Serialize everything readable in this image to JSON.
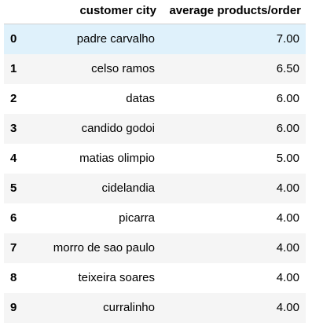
{
  "table": {
    "columns": [
      "customer city",
      "average products/order"
    ],
    "rows": [
      {
        "index": "0",
        "city": "padre carvalho",
        "avg": "7.00"
      },
      {
        "index": "1",
        "city": "celso ramos",
        "avg": "6.50"
      },
      {
        "index": "2",
        "city": "datas",
        "avg": "6.00"
      },
      {
        "index": "3",
        "city": "candido godoi",
        "avg": "6.00"
      },
      {
        "index": "4",
        "city": "matias olimpio",
        "avg": "5.00"
      },
      {
        "index": "5",
        "city": "cidelandia",
        "avg": "4.00"
      },
      {
        "index": "6",
        "city": "picarra",
        "avg": "4.00"
      },
      {
        "index": "7",
        "city": "morro de sao paulo",
        "avg": "4.00"
      },
      {
        "index": "8",
        "city": "teixeira soares",
        "avg": "4.00"
      },
      {
        "index": "9",
        "city": "curralinho",
        "avg": "4.00"
      }
    ]
  }
}
